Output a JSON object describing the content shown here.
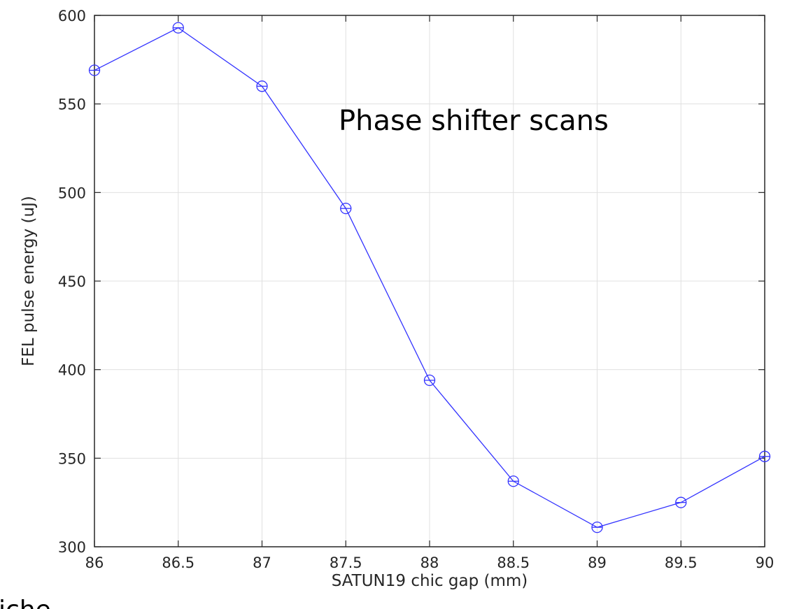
{
  "chart_data": {
    "type": "line",
    "title": "",
    "xlabel": "SATUN19 chic gap (mm)",
    "ylabel": "FEL pulse energy (uJ)",
    "xlim": [
      86,
      90
    ],
    "ylim": [
      300,
      600
    ],
    "x_ticks": [
      "86",
      "86.5",
      "87",
      "87.5",
      "88",
      "88.5",
      "89",
      "89.5",
      "90"
    ],
    "y_ticks": [
      "300",
      "350",
      "400",
      "450",
      "500",
      "550",
      "600"
    ],
    "grid": true,
    "marker": "circle-with-plus",
    "color": "#3333ff",
    "series": [
      {
        "x": [
          86,
          86.5,
          87,
          87.5,
          88,
          88.5,
          89,
          89.5,
          90
        ],
        "y": [
          569,
          593,
          560,
          491,
          394,
          337,
          311,
          325,
          351
        ]
      }
    ],
    "annotations": [
      "Phase shifter scans"
    ]
  },
  "fragment_text": "iche"
}
